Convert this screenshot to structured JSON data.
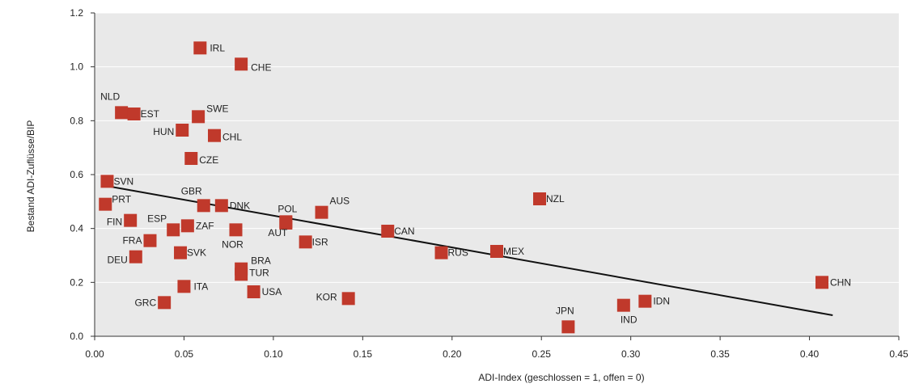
{
  "colors": {
    "marker": "#C0392B",
    "plot_bg": "#e9e9e9",
    "trend": "#111111",
    "grid": "#ffffff"
  },
  "chart_data": {
    "type": "scatter",
    "title": "",
    "xlabel": "ADI-Index (geschlossen = 1, offen = 0)",
    "ylabel": "Bestand ADI-Zuflüsse/BIP",
    "xlim": [
      0,
      0.45
    ],
    "ylim": [
      0,
      1.2
    ],
    "xticks": [
      "0.00",
      "0.05",
      "0.10",
      "0.15",
      "0.20",
      "0.25",
      "0.30",
      "0.35",
      "0.40",
      "0.45"
    ],
    "xtick_values": [
      0,
      0.05,
      0.1,
      0.15,
      0.2,
      0.25,
      0.3,
      0.35,
      0.4,
      0.45
    ],
    "yticks": [
      "0.0",
      "0.2",
      "0.4",
      "0.6",
      "0.8",
      "1.0",
      "1.2"
    ],
    "ytick_values": [
      0,
      0.2,
      0.4,
      0.6,
      0.8,
      1.0,
      1.2
    ],
    "grid": "horizontal",
    "trendline": {
      "x": [
        0.005,
        0.413
      ],
      "y": [
        0.56,
        0.078
      ]
    },
    "points": [
      {
        "label": "IRL",
        "x": 0.059,
        "y": 1.07
      },
      {
        "label": "CHE",
        "x": 0.082,
        "y": 1.01
      },
      {
        "label": "NLD",
        "x": 0.015,
        "y": 0.83
      },
      {
        "label": "EST",
        "x": 0.022,
        "y": 0.825
      },
      {
        "label": "SWE",
        "x": 0.058,
        "y": 0.815
      },
      {
        "label": "HUN",
        "x": 0.049,
        "y": 0.765
      },
      {
        "label": "CHL",
        "x": 0.067,
        "y": 0.745
      },
      {
        "label": "CZE",
        "x": 0.054,
        "y": 0.66
      },
      {
        "label": "SVN",
        "x": 0.007,
        "y": 0.575
      },
      {
        "label": "PRT",
        "x": 0.006,
        "y": 0.49
      },
      {
        "label": "GBR",
        "x": 0.061,
        "y": 0.485
      },
      {
        "label": "DNK",
        "x": 0.071,
        "y": 0.485
      },
      {
        "label": "POL",
        "x": 0.107,
        "y": 0.425
      },
      {
        "label": "AUS",
        "x": 0.127,
        "y": 0.46
      },
      {
        "label": "FIN",
        "x": 0.02,
        "y": 0.43
      },
      {
        "label": "ESP",
        "x": 0.044,
        "y": 0.395
      },
      {
        "label": "ZAF",
        "x": 0.052,
        "y": 0.41
      },
      {
        "label": "NOR",
        "x": 0.079,
        "y": 0.395
      },
      {
        "label": "AUT",
        "x": 0.107,
        "y": 0.42
      },
      {
        "label": "FRA",
        "x": 0.031,
        "y": 0.355
      },
      {
        "label": "ISR",
        "x": 0.118,
        "y": 0.35
      },
      {
        "label": "CAN",
        "x": 0.164,
        "y": 0.39
      },
      {
        "label": "DEU",
        "x": 0.023,
        "y": 0.295
      },
      {
        "label": "SVK",
        "x": 0.048,
        "y": 0.31
      },
      {
        "label": "RUS",
        "x": 0.194,
        "y": 0.31
      },
      {
        "label": "MEX",
        "x": 0.225,
        "y": 0.315
      },
      {
        "label": "NZL",
        "x": 0.249,
        "y": 0.51
      },
      {
        "label": "BRA",
        "x": 0.082,
        "y": 0.25
      },
      {
        "label": "TUR",
        "x": 0.082,
        "y": 0.23
      },
      {
        "label": "ITA",
        "x": 0.05,
        "y": 0.185
      },
      {
        "label": "USA",
        "x": 0.089,
        "y": 0.165
      },
      {
        "label": "GRC",
        "x": 0.039,
        "y": 0.125
      },
      {
        "label": "KOR",
        "x": 0.142,
        "y": 0.14
      },
      {
        "label": "JPN",
        "x": 0.265,
        "y": 0.035
      },
      {
        "label": "IND",
        "x": 0.296,
        "y": 0.115
      },
      {
        "label": "IDN",
        "x": 0.308,
        "y": 0.13
      },
      {
        "label": "CHN",
        "x": 0.407,
        "y": 0.2
      }
    ]
  }
}
